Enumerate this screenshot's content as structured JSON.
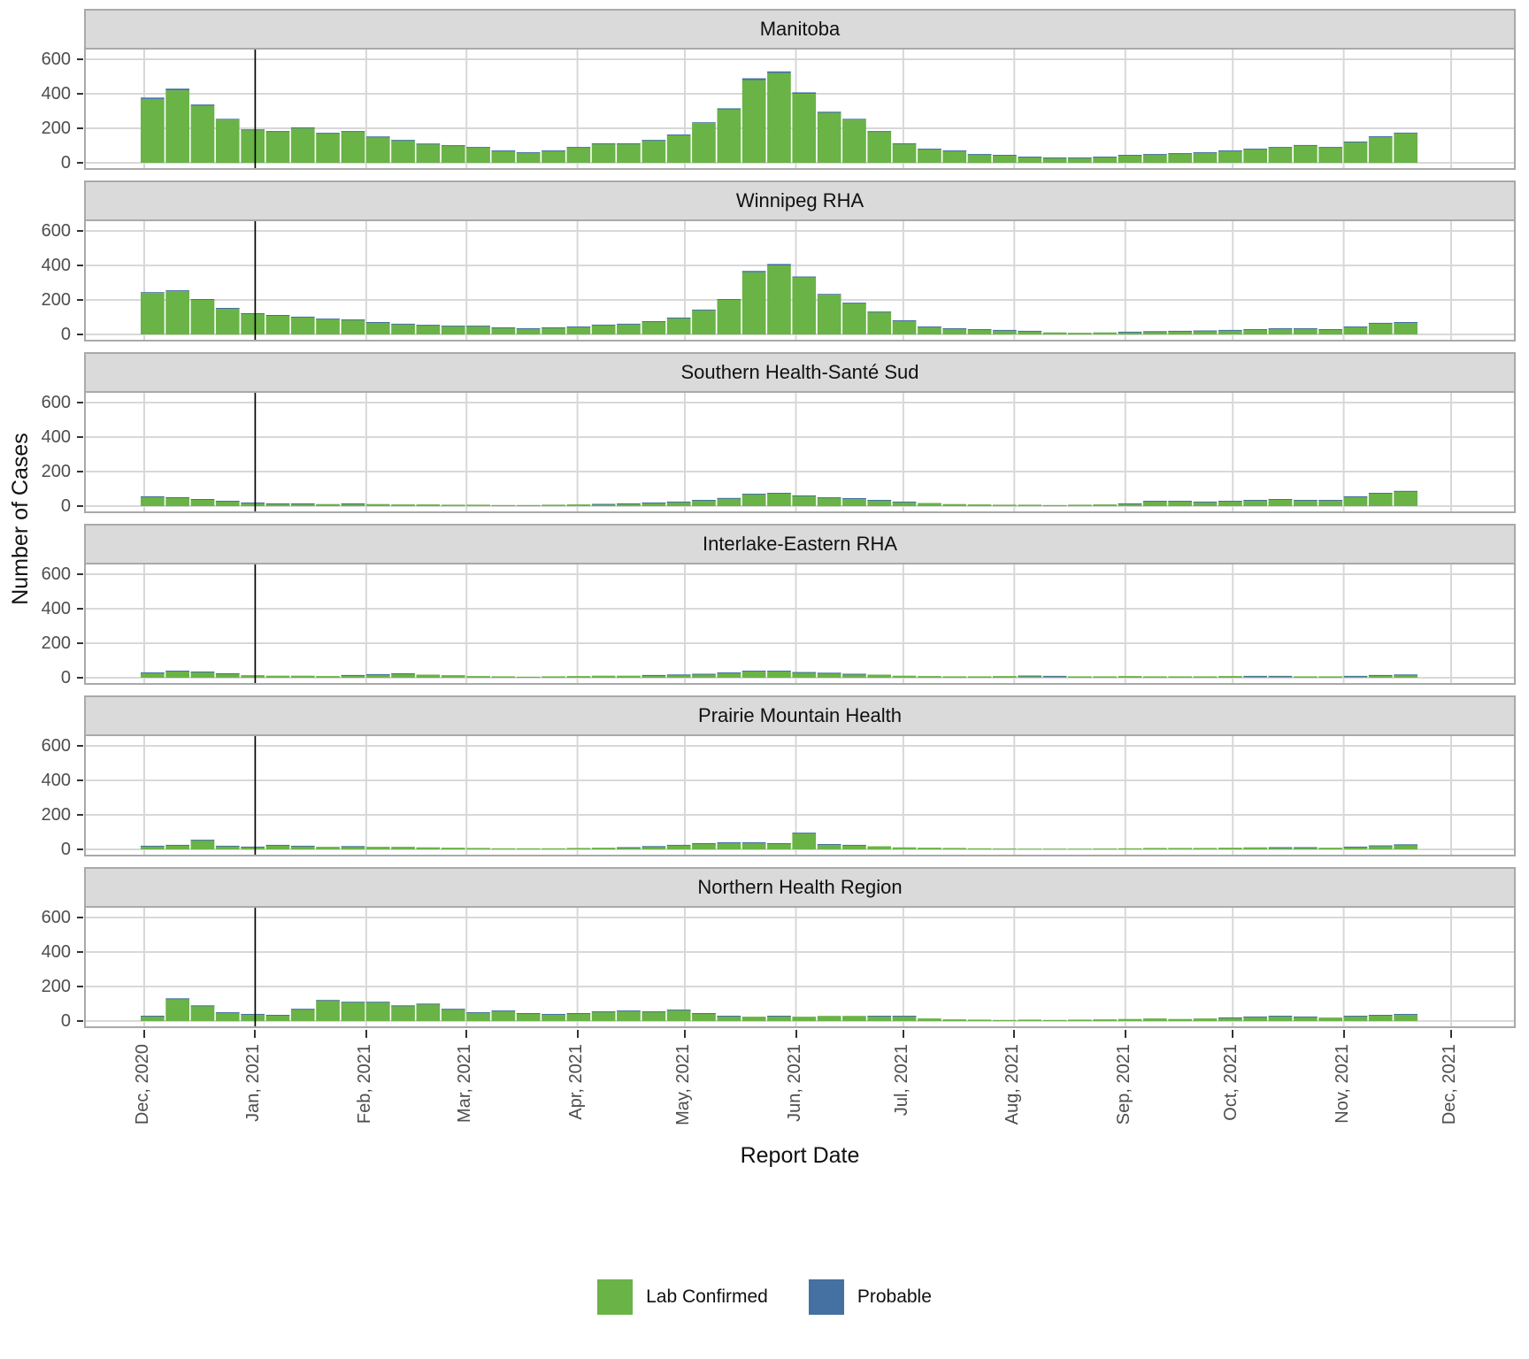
{
  "figure": {
    "y_axis_title": "Number of Cases",
    "x_axis_title": "Report Date"
  },
  "chart_data": {
    "type": "bar",
    "stacked": true,
    "title": "",
    "xlabel": "Report Date",
    "ylabel": "Number of Cases",
    "ylim": [
      0,
      620
    ],
    "y_ticks": [
      0,
      200,
      400,
      600
    ],
    "grid": true,
    "legend_position": "bottom",
    "x_tick_labels": [
      "Dec, 2020",
      "Jan, 2021",
      "Feb, 2021",
      "Mar, 2021",
      "Apr, 2021",
      "May, 2021",
      "Jun, 2021",
      "Jul, 2021",
      "Aug, 2021",
      "Sep, 2021",
      "Oct, 2021",
      "Nov, 2021",
      "Dec, 2021"
    ],
    "reference_line_date": "2021-01-01",
    "x_resolution": "weekly estimated values (week start date), read from daily bars",
    "weeks": [
      "2020-11-30",
      "2020-12-07",
      "2020-12-14",
      "2020-12-21",
      "2020-12-28",
      "2021-01-04",
      "2021-01-11",
      "2021-01-18",
      "2021-01-25",
      "2021-02-01",
      "2021-02-08",
      "2021-02-15",
      "2021-02-22",
      "2021-03-01",
      "2021-03-08",
      "2021-03-15",
      "2021-03-22",
      "2021-03-29",
      "2021-04-05",
      "2021-04-12",
      "2021-04-19",
      "2021-04-26",
      "2021-05-03",
      "2021-05-10",
      "2021-05-17",
      "2021-05-24",
      "2021-05-31",
      "2021-06-07",
      "2021-06-14",
      "2021-06-21",
      "2021-06-28",
      "2021-07-05",
      "2021-07-12",
      "2021-07-19",
      "2021-07-26",
      "2021-08-02",
      "2021-08-09",
      "2021-08-16",
      "2021-08-23",
      "2021-08-30",
      "2021-09-06",
      "2021-09-13",
      "2021-09-20",
      "2021-09-27",
      "2021-10-04",
      "2021-10-11",
      "2021-10-18",
      "2021-10-25",
      "2021-11-01",
      "2021-11-08",
      "2021-11-15"
    ],
    "colors": {
      "lab_confirmed": "#6AB346",
      "probable": "#4470A2"
    },
    "legend": [
      {
        "label": "Lab Confirmed",
        "key": "lab_confirmed"
      },
      {
        "label": "Probable",
        "key": "probable"
      }
    ],
    "facets": [
      {
        "title": "Manitoba",
        "series": {
          "lab_confirmed": [
            370,
            420,
            330,
            250,
            190,
            180,
            200,
            170,
            180,
            150,
            130,
            110,
            100,
            90,
            70,
            60,
            70,
            90,
            110,
            110,
            130,
            160,
            230,
            310,
            480,
            520,
            400,
            290,
            250,
            180,
            110,
            80,
            70,
            50,
            45,
            35,
            30,
            30,
            35,
            45,
            50,
            55,
            60,
            70,
            80,
            90,
            100,
            90,
            120,
            150,
            170
          ],
          "probable": [
            8,
            10,
            8,
            5,
            4,
            4,
            5,
            4,
            4,
            3,
            3,
            2,
            2,
            2,
            2,
            1,
            2,
            2,
            3,
            3,
            3,
            4,
            5,
            6,
            10,
            10,
            8,
            6,
            5,
            4,
            3,
            2,
            2,
            1,
            1,
            1,
            1,
            1,
            1,
            1,
            1,
            1,
            1,
            2,
            2,
            2,
            3,
            2,
            3,
            4,
            5
          ]
        }
      },
      {
        "title": "Winnipeg RHA",
        "series": {
          "lab_confirmed": [
            240,
            250,
            200,
            150,
            120,
            110,
            100,
            90,
            85,
            70,
            60,
            55,
            50,
            50,
            40,
            35,
            40,
            45,
            55,
            60,
            75,
            95,
            140,
            200,
            360,
            400,
            330,
            230,
            180,
            130,
            80,
            45,
            35,
            30,
            25,
            20,
            12,
            10,
            12,
            15,
            18,
            20,
            22,
            25,
            30,
            35,
            35,
            30,
            45,
            65,
            70
          ],
          "probable": [
            5,
            6,
            5,
            4,
            3,
            3,
            3,
            2,
            2,
            2,
            2,
            1,
            1,
            1,
            1,
            1,
            1,
            1,
            2,
            2,
            2,
            3,
            4,
            5,
            8,
            8,
            6,
            5,
            4,
            3,
            2,
            1,
            1,
            1,
            1,
            1,
            0,
            0,
            0,
            1,
            1,
            1,
            1,
            1,
            1,
            1,
            1,
            1,
            1,
            2,
            2
          ]
        }
      },
      {
        "title": "Southern Health-Santé Sud",
        "series": {
          "lab_confirmed": [
            55,
            50,
            40,
            30,
            20,
            15,
            15,
            12,
            15,
            12,
            10,
            10,
            8,
            8,
            6,
            6,
            8,
            10,
            12,
            15,
            20,
            25,
            35,
            45,
            70,
            75,
            60,
            50,
            45,
            35,
            25,
            18,
            12,
            10,
            8,
            8,
            6,
            8,
            10,
            15,
            30,
            30,
            25,
            30,
            35,
            40,
            35,
            35,
            55,
            75,
            85
          ],
          "probable": [
            2,
            2,
            1,
            1,
            1,
            1,
            1,
            0,
            1,
            0,
            0,
            0,
            0,
            0,
            0,
            0,
            0,
            0,
            1,
            1,
            1,
            1,
            1,
            2,
            2,
            2,
            2,
            1,
            1,
            1,
            1,
            0,
            0,
            0,
            0,
            0,
            0,
            0,
            0,
            1,
            1,
            1,
            1,
            1,
            1,
            1,
            1,
            1,
            2,
            2,
            3
          ]
        }
      },
      {
        "title": "Interlake-Eastern RHA",
        "series": {
          "lab_confirmed": [
            30,
            40,
            35,
            25,
            15,
            12,
            12,
            10,
            15,
            20,
            25,
            18,
            15,
            10,
            8,
            6,
            8,
            10,
            12,
            12,
            15,
            18,
            22,
            30,
            40,
            40,
            32,
            28,
            22,
            18,
            12,
            10,
            8,
            8,
            10,
            12,
            10,
            8,
            8,
            10,
            8,
            8,
            8,
            10,
            10,
            10,
            8,
            8,
            10,
            15,
            18
          ],
          "probable": [
            1,
            1,
            1,
            1,
            0,
            0,
            0,
            0,
            1,
            1,
            1,
            0,
            0,
            0,
            0,
            0,
            0,
            0,
            0,
            0,
            1,
            1,
            1,
            1,
            1,
            1,
            1,
            1,
            1,
            0,
            0,
            0,
            0,
            0,
            0,
            1,
            1,
            0,
            0,
            0,
            0,
            0,
            0,
            0,
            1,
            1,
            0,
            0,
            1,
            1,
            1
          ]
        }
      },
      {
        "title": "Prairie Mountain Health",
        "series": {
          "lab_confirmed": [
            20,
            25,
            55,
            20,
            15,
            25,
            20,
            15,
            18,
            15,
            15,
            12,
            10,
            8,
            6,
            6,
            6,
            8,
            10,
            12,
            18,
            25,
            35,
            40,
            40,
            35,
            95,
            30,
            25,
            18,
            12,
            10,
            8,
            6,
            5,
            4,
            4,
            4,
            5,
            6,
            8,
            8,
            8,
            10,
            12,
            12,
            12,
            10,
            15,
            22,
            28
          ],
          "probable": [
            1,
            1,
            1,
            1,
            1,
            1,
            1,
            0,
            1,
            0,
            0,
            0,
            0,
            0,
            0,
            0,
            0,
            0,
            0,
            1,
            1,
            1,
            1,
            1,
            1,
            1,
            2,
            1,
            1,
            0,
            0,
            0,
            0,
            0,
            0,
            0,
            0,
            0,
            0,
            0,
            0,
            0,
            0,
            0,
            0,
            1,
            1,
            0,
            1,
            1,
            1
          ]
        }
      },
      {
        "title": "Northern Health Region",
        "series": {
          "lab_confirmed": [
            30,
            130,
            90,
            50,
            40,
            35,
            70,
            120,
            110,
            110,
            90,
            100,
            70,
            50,
            60,
            45,
            40,
            45,
            55,
            60,
            55,
            65,
            45,
            30,
            25,
            30,
            25,
            30,
            30,
            30,
            30,
            15,
            10,
            8,
            6,
            8,
            6,
            8,
            10,
            12,
            15,
            12,
            15,
            20,
            25,
            30,
            25,
            20,
            30,
            35,
            40
          ],
          "probable": [
            1,
            2,
            1,
            1,
            1,
            1,
            1,
            2,
            2,
            2,
            1,
            1,
            1,
            1,
            1,
            1,
            1,
            1,
            1,
            1,
            1,
            1,
            1,
            1,
            0,
            1,
            0,
            0,
            0,
            1,
            1,
            0,
            0,
            0,
            0,
            0,
            0,
            0,
            0,
            0,
            0,
            0,
            0,
            1,
            1,
            1,
            1,
            0,
            1,
            1,
            1
          ]
        }
      }
    ]
  }
}
